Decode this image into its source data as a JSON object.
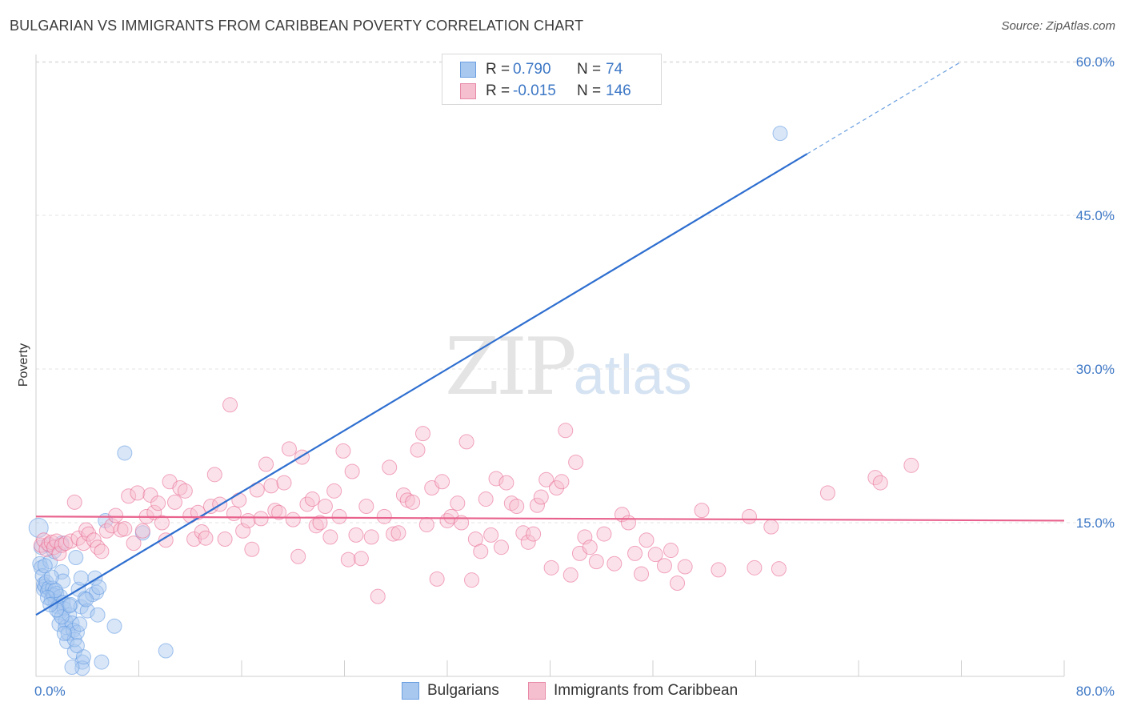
{
  "header": {
    "title": "BULGARIAN VS IMMIGRANTS FROM CARIBBEAN POVERTY CORRELATION CHART",
    "source": "Source: ZipAtlas.com"
  },
  "watermark": {
    "zip": "ZIP",
    "atlas": "atlas"
  },
  "legend": {
    "rows": [
      {
        "r_label": "R =",
        "r_value": "0.790",
        "n_label": "N =",
        "n_value": "74",
        "color": "#a9c8f0",
        "border": "#6a9fe0"
      },
      {
        "r_label": "R =",
        "r_value": "-0.015",
        "n_label": "N =",
        "n_value": "146",
        "color": "#f6bfd0",
        "border": "#e88aa8"
      }
    ]
  },
  "bottom_legend": [
    {
      "label": "Bulgarians",
      "color": "#a9c8f0",
      "border": "#6a9fe0"
    },
    {
      "label": "Immigrants from Caribbean",
      "color": "#f6bfd0",
      "border": "#e88aa8"
    }
  ],
  "chart_data": {
    "type": "scatter",
    "title": "BULGARIAN VS IMMIGRANTS FROM CARIBBEAN POVERTY CORRELATION CHART",
    "xlabel": "",
    "ylabel": "Poverty",
    "xlim": [
      0,
      80
    ],
    "ylim": [
      0,
      63
    ],
    "x_tick_labels": [
      "0.0%",
      "80.0%"
    ],
    "y_ticks": [
      15,
      30,
      45,
      60
    ],
    "y_tick_labels": [
      "15.0%",
      "30.0%",
      "45.0%",
      "60.0%"
    ],
    "grid": true,
    "legend_position": "top-center",
    "series": [
      {
        "name": "Bulgarians",
        "color": "#5b95e0",
        "fill": "#a9c8f0",
        "r": 0.79,
        "n": 74,
        "trend": {
          "x0": 0,
          "y0": 6.0,
          "x1": 60,
          "y1": 51.0,
          "dashed_to_x": 72,
          "dashed_to_y": 60.0
        },
        "points": [
          [
            0.2,
            14.5
          ],
          [
            0.3,
            11.0
          ],
          [
            0.4,
            10.6
          ],
          [
            0.5,
            9.8
          ],
          [
            0.6,
            9.0
          ],
          [
            0.6,
            8.5
          ],
          [
            0.7,
            8.8
          ],
          [
            0.8,
            9.2
          ],
          [
            0.9,
            8.3
          ],
          [
            1.0,
            8.6
          ],
          [
            1.0,
            12.8
          ],
          [
            1.1,
            11.2
          ],
          [
            1.2,
            7.5
          ],
          [
            1.3,
            8.0
          ],
          [
            1.3,
            8.6
          ],
          [
            1.4,
            7.9
          ],
          [
            1.5,
            7.3
          ],
          [
            1.6,
            8.1
          ],
          [
            1.7,
            6.8
          ],
          [
            1.8,
            6.2
          ],
          [
            1.8,
            5.1
          ],
          [
            1.9,
            7.8
          ],
          [
            2.0,
            13.0
          ],
          [
            2.0,
            10.2
          ],
          [
            2.1,
            9.3
          ],
          [
            2.1,
            7.2
          ],
          [
            2.2,
            6.6
          ],
          [
            2.3,
            5.4
          ],
          [
            2.3,
            4.8
          ],
          [
            2.4,
            3.4
          ],
          [
            2.5,
            4.2
          ],
          [
            2.6,
            6.0
          ],
          [
            2.7,
            7.0
          ],
          [
            2.8,
            5.2
          ],
          [
            2.9,
            4.5
          ],
          [
            3.0,
            2.4
          ],
          [
            3.0,
            3.6
          ],
          [
            3.1,
            11.6
          ],
          [
            3.2,
            4.3
          ],
          [
            3.3,
            8.5
          ],
          [
            3.4,
            5.1
          ],
          [
            3.5,
            9.6
          ],
          [
            3.5,
            6.8
          ],
          [
            3.6,
            1.4
          ],
          [
            3.6,
            0.8
          ],
          [
            3.7,
            1.9
          ],
          [
            3.8,
            7.6
          ],
          [
            4.0,
            6.4
          ],
          [
            4.4,
            8.0
          ],
          [
            4.6,
            9.6
          ],
          [
            4.7,
            8.2
          ],
          [
            4.9,
            8.7
          ],
          [
            5.1,
            1.4
          ],
          [
            5.4,
            15.2
          ],
          [
            6.1,
            4.9
          ],
          [
            6.9,
            21.8
          ],
          [
            8.3,
            14.0
          ],
          [
            10.1,
            2.5
          ],
          [
            2.0,
            5.8
          ],
          [
            1.5,
            8.4
          ],
          [
            0.9,
            7.7
          ],
          [
            1.2,
            9.7
          ],
          [
            2.2,
            4.2
          ],
          [
            3.2,
            3.0
          ],
          [
            2.6,
            6.9
          ],
          [
            1.6,
            6.5
          ],
          [
            0.7,
            10.8
          ],
          [
            0.4,
            12.6
          ],
          [
            2.8,
            0.9
          ],
          [
            1.4,
            12.2
          ],
          [
            3.9,
            7.5
          ],
          [
            4.8,
            6.0
          ],
          [
            1.1,
            7.0
          ],
          [
            57.9,
            53.0
          ]
        ]
      },
      {
        "name": "Immigrants from Caribbean",
        "color": "#e8628d",
        "fill": "#f6bfd0",
        "r": -0.015,
        "n": 146,
        "trend": {
          "x0": 0,
          "y0": 15.6,
          "x1": 80,
          "y1": 15.2
        },
        "points": [
          [
            0.4,
            12.8
          ],
          [
            0.6,
            13.3
          ],
          [
            0.8,
            12.4
          ],
          [
            1.0,
            12.9
          ],
          [
            1.2,
            13.1
          ],
          [
            1.4,
            12.6
          ],
          [
            1.6,
            13.2
          ],
          [
            1.8,
            12.0
          ],
          [
            2.0,
            12.8
          ],
          [
            2.3,
            13.0
          ],
          [
            2.7,
            13.2
          ],
          [
            3.0,
            17.0
          ],
          [
            3.3,
            13.5
          ],
          [
            3.7,
            13.0
          ],
          [
            3.9,
            14.3
          ],
          [
            4.1,
            13.9
          ],
          [
            4.5,
            13.3
          ],
          [
            4.8,
            12.6
          ],
          [
            5.1,
            12.2
          ],
          [
            5.5,
            14.2
          ],
          [
            5.9,
            14.7
          ],
          [
            6.2,
            15.7
          ],
          [
            6.6,
            14.3
          ],
          [
            6.9,
            14.4
          ],
          [
            7.2,
            17.6
          ],
          [
            7.6,
            13.0
          ],
          [
            7.9,
            17.9
          ],
          [
            8.3,
            14.2
          ],
          [
            8.6,
            15.6
          ],
          [
            8.9,
            17.7
          ],
          [
            9.2,
            16.0
          ],
          [
            9.5,
            16.9
          ],
          [
            9.8,
            15.0
          ],
          [
            10.1,
            13.3
          ],
          [
            10.4,
            19.0
          ],
          [
            10.8,
            17.0
          ],
          [
            11.2,
            18.4
          ],
          [
            11.6,
            18.1
          ],
          [
            12.0,
            15.7
          ],
          [
            12.3,
            13.4
          ],
          [
            12.6,
            16.0
          ],
          [
            12.9,
            14.1
          ],
          [
            13.2,
            13.5
          ],
          [
            13.6,
            16.6
          ],
          [
            13.9,
            19.7
          ],
          [
            14.3,
            16.8
          ],
          [
            14.7,
            13.4
          ],
          [
            15.1,
            26.5
          ],
          [
            15.4,
            15.9
          ],
          [
            15.8,
            17.2
          ],
          [
            16.1,
            14.2
          ],
          [
            16.5,
            15.2
          ],
          [
            16.8,
            12.4
          ],
          [
            17.2,
            18.2
          ],
          [
            17.5,
            15.4
          ],
          [
            17.9,
            20.7
          ],
          [
            18.3,
            18.6
          ],
          [
            18.6,
            16.2
          ],
          [
            18.9,
            16.0
          ],
          [
            19.3,
            18.9
          ],
          [
            19.7,
            22.2
          ],
          [
            20.0,
            15.3
          ],
          [
            20.4,
            11.7
          ],
          [
            20.7,
            21.4
          ],
          [
            21.1,
            16.8
          ],
          [
            21.5,
            17.3
          ],
          [
            21.8,
            14.7
          ],
          [
            22.1,
            15.0
          ],
          [
            22.5,
            16.6
          ],
          [
            22.9,
            13.6
          ],
          [
            23.2,
            18.1
          ],
          [
            23.6,
            15.6
          ],
          [
            23.9,
            22.0
          ],
          [
            24.3,
            11.4
          ],
          [
            24.6,
            20.0
          ],
          [
            24.9,
            13.8
          ],
          [
            25.3,
            11.5
          ],
          [
            25.7,
            16.6
          ],
          [
            26.1,
            13.6
          ],
          [
            26.6,
            7.8
          ],
          [
            27.1,
            15.6
          ],
          [
            27.5,
            20.4
          ],
          [
            27.8,
            13.9
          ],
          [
            28.2,
            14.0
          ],
          [
            28.6,
            17.7
          ],
          [
            28.9,
            17.2
          ],
          [
            29.3,
            17.0
          ],
          [
            29.7,
            22.1
          ],
          [
            30.1,
            23.7
          ],
          [
            30.4,
            14.8
          ],
          [
            30.8,
            18.4
          ],
          [
            31.2,
            9.5
          ],
          [
            31.6,
            19.0
          ],
          [
            32.0,
            15.2
          ],
          [
            32.3,
            15.6
          ],
          [
            32.8,
            16.9
          ],
          [
            33.1,
            15.0
          ],
          [
            33.5,
            22.9
          ],
          [
            33.9,
            9.4
          ],
          [
            34.2,
            13.4
          ],
          [
            34.6,
            12.2
          ],
          [
            35.0,
            17.3
          ],
          [
            35.4,
            13.8
          ],
          [
            35.8,
            19.3
          ],
          [
            36.2,
            12.6
          ],
          [
            36.6,
            18.9
          ],
          [
            37.0,
            16.9
          ],
          [
            37.4,
            16.6
          ],
          [
            37.9,
            14.0
          ],
          [
            38.3,
            13.1
          ],
          [
            38.7,
            13.9
          ],
          [
            39.0,
            16.7
          ],
          [
            39.3,
            17.5
          ],
          [
            39.7,
            19.2
          ],
          [
            40.1,
            10.6
          ],
          [
            40.5,
            18.4
          ],
          [
            40.9,
            19.0
          ],
          [
            41.2,
            24.0
          ],
          [
            41.6,
            9.9
          ],
          [
            42.0,
            20.9
          ],
          [
            42.3,
            12.0
          ],
          [
            42.7,
            13.6
          ],
          [
            43.1,
            12.6
          ],
          [
            43.6,
            11.2
          ],
          [
            44.2,
            13.9
          ],
          [
            45.0,
            11.0
          ],
          [
            45.6,
            15.8
          ],
          [
            46.1,
            15.0
          ],
          [
            46.6,
            12.0
          ],
          [
            47.1,
            10.0
          ],
          [
            47.5,
            13.3
          ],
          [
            48.2,
            11.9
          ],
          [
            48.9,
            10.8
          ],
          [
            49.4,
            12.3
          ],
          [
            49.9,
            9.1
          ],
          [
            50.5,
            10.7
          ],
          [
            51.8,
            16.2
          ],
          [
            53.1,
            10.4
          ],
          [
            55.5,
            15.6
          ],
          [
            55.9,
            10.6
          ],
          [
            57.2,
            14.6
          ],
          [
            57.8,
            10.5
          ],
          [
            61.6,
            17.9
          ],
          [
            65.3,
            19.4
          ],
          [
            65.7,
            18.9
          ],
          [
            68.1,
            20.6
          ]
        ]
      }
    ]
  }
}
